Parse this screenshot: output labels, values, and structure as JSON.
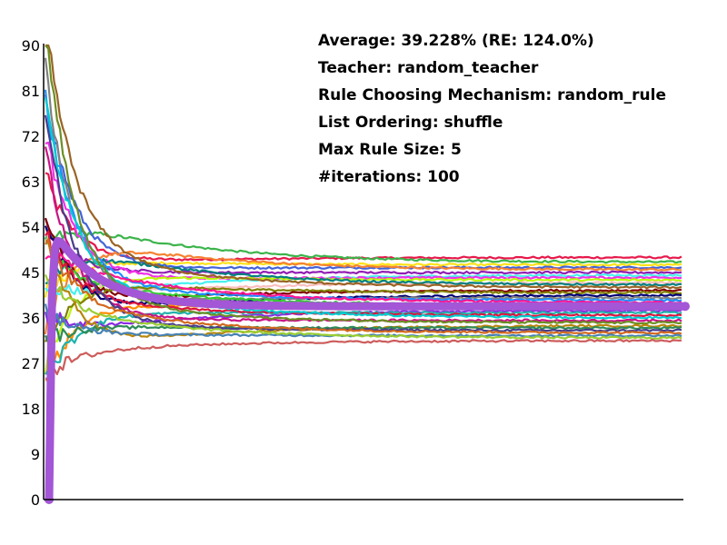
{
  "chart_data": {
    "type": "line",
    "title": "",
    "xlabel": "",
    "ylabel": "",
    "ylim": [
      0,
      90
    ],
    "yticks": [
      "0",
      "9",
      "18",
      "27",
      "36",
      "45",
      "54",
      "63",
      "72",
      "81",
      "90"
    ],
    "x_tick_labels_shown": false,
    "grid": false,
    "legend": "none",
    "info_box": [
      "Average: 39.228% (RE: 124.0%)",
      "Teacher: random_teacher",
      "Rule Choosing Mechanism: random_rule",
      "List Ordering: shuffle",
      "Max Rule Size: 5",
      "#iterations: 100"
    ],
    "series_final_values_approx": [
      48,
      47,
      46.5,
      46,
      45.5,
      45,
      44.5,
      44,
      43.5,
      43,
      42.5,
      42,
      41.5,
      41,
      40.5,
      40,
      39.5,
      39,
      38.5,
      38,
      37.5,
      37,
      36.5,
      36,
      35.5,
      35,
      34.5,
      34,
      33.5,
      33,
      32.5,
      32,
      31.5
    ],
    "average_series": {
      "start": 0,
      "early_peak_approx": 55,
      "final_approx": 38.3,
      "color": "#a356d6"
    },
    "series_colors": [
      "#e6194b",
      "#3cb44b",
      "#ffe119",
      "#4363d8",
      "#f58231",
      "#911eb4",
      "#46f0f0",
      "#f032e6",
      "#bcf60c",
      "#fabebe",
      "#008080",
      "#9a6324",
      "#800000",
      "#808000",
      "#000075",
      "#808080",
      "#1e90ff",
      "#ff1493",
      "#32cd32",
      "#ff8c00",
      "#8a2be2",
      "#20b2aa",
      "#dc143c",
      "#00ced1",
      "#c71585",
      "#6b8e23",
      "#b8860b",
      "#2e8b57",
      "#483d8b",
      "#d2691e",
      "#4682b4",
      "#9acd32",
      "#cd5c5c"
    ]
  }
}
